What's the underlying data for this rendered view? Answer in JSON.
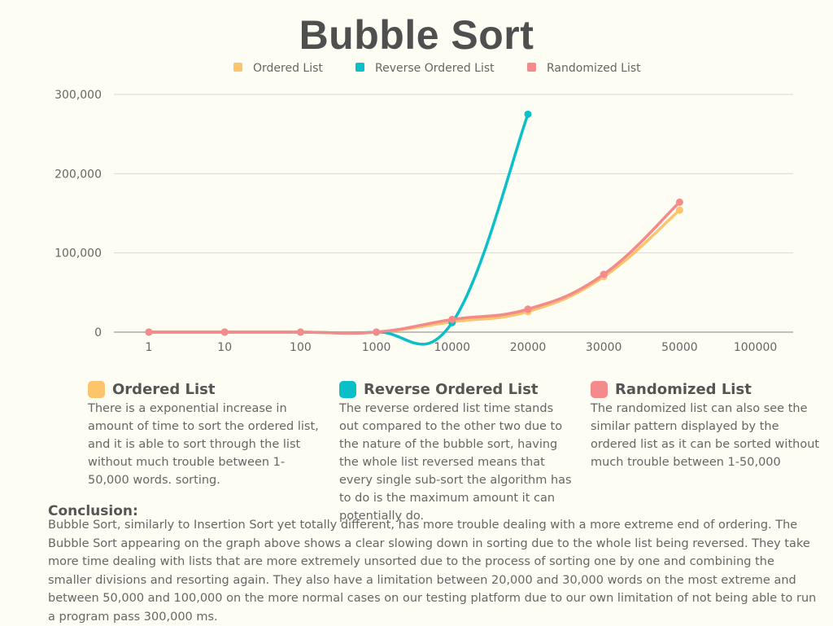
{
  "title": "Bubble Sort",
  "legend": [
    {
      "label": "Ordered List",
      "color": "#fcc46b"
    },
    {
      "label": "Reverse Ordered List",
      "color": "#0bbfc9"
    },
    {
      "label": "Randomized List",
      "color": "#f48a8a"
    }
  ],
  "chart_data": {
    "type": "line",
    "title": "Bubble Sort",
    "xlabel": "",
    "ylabel": "",
    "categories": [
      "1",
      "10",
      "100",
      "1000",
      "10000",
      "20000",
      "30000",
      "50000",
      "100000"
    ],
    "y_ticks": [
      "0",
      "100,000",
      "200,000",
      "300,000"
    ],
    "ylim": [
      0,
      300000
    ],
    "grid": true,
    "legend_position": "top",
    "series": [
      {
        "name": "Ordered List",
        "color": "#fcc46b",
        "values": [
          0,
          0,
          0,
          0,
          13000,
          26000,
          70000,
          154000,
          null
        ]
      },
      {
        "name": "Reverse Ordered List",
        "color": "#0bbfc9",
        "values": [
          0,
          0,
          0,
          0,
          12000,
          275000,
          null,
          null,
          null
        ]
      },
      {
        "name": "Randomized List",
        "color": "#f48a8a",
        "values": [
          0,
          0,
          0,
          0,
          16000,
          29000,
          73000,
          164000,
          null
        ]
      }
    ]
  },
  "notes": [
    {
      "title": "Ordered List",
      "color": "#fcc46b",
      "text": "There is a exponential increase in amount of time to sort the ordered list, and it is able to sort through the list without much trouble between 1-50,000 words. sorting."
    },
    {
      "title": "Reverse Ordered List",
      "color": "#0bbfc9",
      "text": "The reverse ordered list time stands out compared to the other two due to the nature of the bubble sort, having the whole list reversed means that every single sub-sort the algorithm has to do is the maximum amount it can potentially do."
    },
    {
      "title": "Randomized List",
      "color": "#f48a8a",
      "text": "The randomized list can also see the similar pattern displayed by the ordered list as it can be sorted without much trouble between 1-50,000"
    }
  ],
  "conclusion": {
    "title": "Conclusion:",
    "text": "Bubble Sort, similarly to Insertion Sort yet totally different, has more trouble dealing with a more extreme end of ordering. The Bubble Sort appearing on the graph above shows a clear slowing down in sorting due to the whole list being reversed. They take more time dealing with lists that are more extremely unsorted due to the process of sorting one by one and combining the smaller divisions and resorting again. They also have a limitation between 20,000 and 30,000 words on the most extreme and between 50,000 and 100,000 on the more normal cases on our testing platform due to our own limitation of not being able to run a program pass 300,000 ms."
  }
}
